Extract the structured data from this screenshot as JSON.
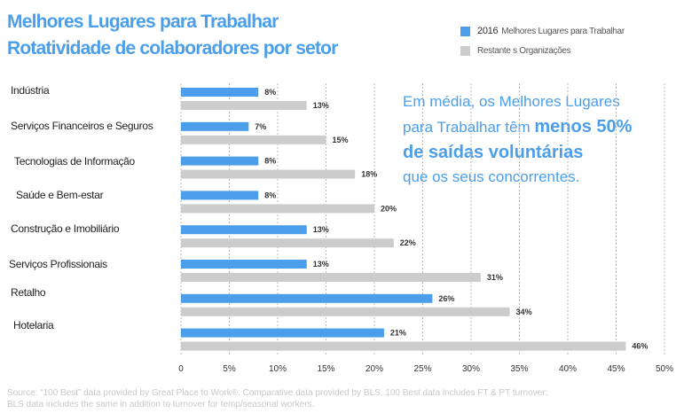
{
  "header": {
    "title_line1": "Melhores Lugares para Trabalhar",
    "title_line2": "Rotatividade de colaboradores por setor"
  },
  "legend": {
    "items": [
      {
        "year": "2016",
        "label": "Melhores Lugares para Trabalhar",
        "color": "#4a9eea"
      },
      {
        "year": "",
        "label": "Restante s Organizações",
        "color": "#cccccc"
      }
    ]
  },
  "callout": {
    "line1": "Em média, os  Melhores Lugares",
    "line2_prefix": "para Trabalhar têm ",
    "line2_strong": "menos 50%",
    "line3": "de saídas voluntárias",
    "line4": "que os seus concorrentes."
  },
  "source": {
    "line1": "Source: “100 Best” data provided by Great Place to Work®. Comparative data provided by BLS. 100 Best data includes FT & PT turnover;",
    "line2": "BLS data includes the same in addition to turnover for temp/seasonal workers."
  },
  "chart_data": {
    "type": "bar",
    "orientation": "horizontal",
    "categories": [
      "Indústria",
      "Serviços Financeiros e Seguros",
      "Tecnologias de Informação",
      "Saúde e Bem-estar",
      "Construção e  Imobiliário",
      "Serviços Profissionais",
      "Retalho",
      "Hotelaria"
    ],
    "series": [
      {
        "name": "2016 Melhores Lugares para Trabalhar",
        "color": "#4a9eea",
        "values": [
          8,
          7,
          8,
          8,
          13,
          13,
          26,
          21
        ]
      },
      {
        "name": "Restante s Organizações",
        "color": "#cccccc",
        "values": [
          13,
          15,
          18,
          20,
          22,
          31,
          34,
          46
        ]
      }
    ],
    "value_suffix": "%",
    "xlim": [
      0,
      50
    ],
    "x_ticks": [
      "0",
      "5%",
      "10%",
      "15%",
      "20%",
      "25%",
      "30%",
      "35%",
      "40%",
      "45%",
      "50%"
    ],
    "grid": "vertical dashed",
    "legend_position": "top-right"
  }
}
